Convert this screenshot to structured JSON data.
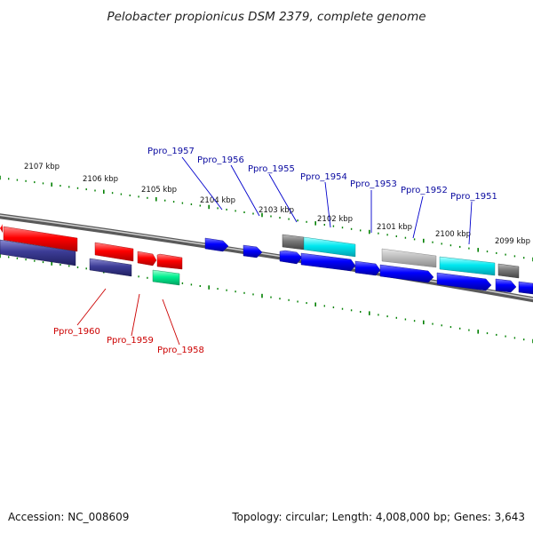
{
  "title": "Pelobacter propionicus DSM 2379, complete genome",
  "footer": {
    "accession": "Accession: NC_008609",
    "topology": "Topology: circular; Length: 4,008,000 bp; Genes: 3,643"
  },
  "kbp_labels": [
    "2107 kbp",
    "2106 kbp",
    "2105 kbp",
    "2104 kbp",
    "2103 kbp",
    "2102 kbp",
    "2101 kbp",
    "2100 kbp",
    "2099 kbp"
  ],
  "genes_top": [
    "Ppro_1957",
    "Ppro_1956",
    "Ppro_1955",
    "Ppro_1954",
    "Ppro_1953",
    "Ppro_1952",
    "Ppro_1951"
  ],
  "genes_bottom": [
    "Ppro_1960",
    "Ppro_1959",
    "Ppro_1958"
  ],
  "colors": {
    "red": "#ff0000",
    "navy": "#3a3a8a",
    "blue": "#0000ff",
    "cyan": "#00e5ee",
    "green": "#00ee88",
    "grey": "#888888",
    "lightgrey": "#bbbbbb",
    "tick": "#008000",
    "leader_top": "#0000cc",
    "leader_bottom": "#cc0000"
  }
}
